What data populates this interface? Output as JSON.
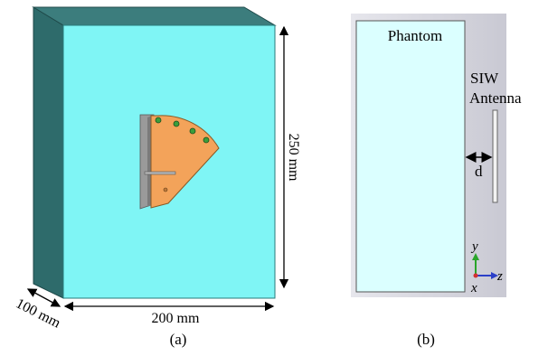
{
  "panel_a": {
    "caption": "(a)",
    "dim_height": "250 mm",
    "dim_width": "200 mm",
    "dim_depth": "100 mm"
  },
  "panel_b": {
    "caption": "(b)",
    "phantom_label": "Phantom",
    "antenna_label_line1": "SIW",
    "antenna_label_line2": "Antenna",
    "distance_label": "d",
    "axis_y": "y",
    "axis_z": "z",
    "axis_x": "x"
  },
  "colors": {
    "phantom_front": "#7ff5f5",
    "phantom_side": "#2e6b6b",
    "antenna_orange": "#f3a35a",
    "antenna_metal": "#9a9a9a",
    "panel_b_bg": "#e3e3ea",
    "phantom_b_fill": "#dbffff"
  }
}
